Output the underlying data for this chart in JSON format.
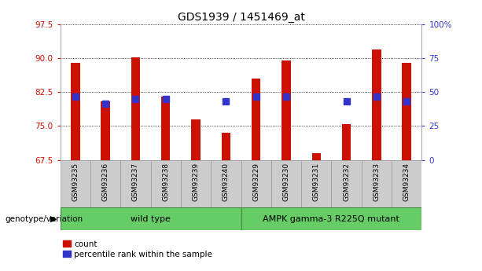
{
  "title": "GDS1939 / 1451469_at",
  "categories": [
    "GSM93235",
    "GSM93236",
    "GSM93237",
    "GSM93238",
    "GSM93239",
    "GSM93240",
    "GSM93229",
    "GSM93230",
    "GSM93231",
    "GSM93232",
    "GSM93233",
    "GSM93234"
  ],
  "bar_values": [
    89.0,
    80.5,
    90.2,
    81.5,
    76.5,
    73.5,
    85.5,
    89.5,
    69.0,
    75.5,
    92.0,
    89.0
  ],
  "dot_values": [
    81.5,
    80.0,
    81.0,
    81.0,
    null,
    80.5,
    81.5,
    81.5,
    null,
    80.5,
    81.5,
    80.5
  ],
  "ylim_left": [
    67.5,
    97.5
  ],
  "yticks_left": [
    67.5,
    75.0,
    82.5,
    90.0,
    97.5
  ],
  "yticks_right_vals": [
    0,
    25,
    50,
    75,
    100
  ],
  "yticks_right_labels": [
    "0",
    "25",
    "50",
    "75",
    "100%"
  ],
  "bar_color": "#cc1100",
  "dot_color": "#3333cc",
  "grid_color": "#000000",
  "xtick_bg": "#cccccc",
  "xtick_edge": "#999999",
  "group1_label": "wild type",
  "group1_indices": [
    0,
    1,
    2,
    3,
    4,
    5
  ],
  "group2_label": "AMPK gamma-3 R225Q mutant",
  "group2_indices": [
    6,
    7,
    8,
    9,
    10,
    11
  ],
  "group_bg": "#66cc66",
  "group_edge": "#448844",
  "genotype_label": "genotype/variation",
  "legend_count": "count",
  "legend_pct": "percentile rank within the sample",
  "bar_width": 0.3,
  "dot_size": 30
}
